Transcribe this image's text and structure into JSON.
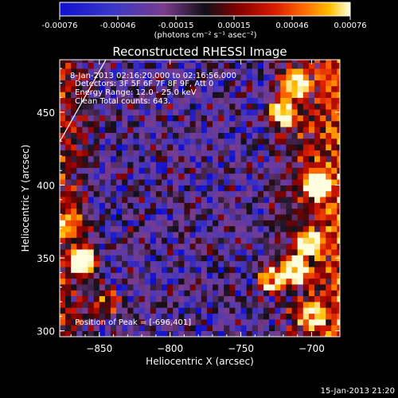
{
  "colorbar": {
    "ticks": [
      "-0.00076",
      "-0.00046",
      "-0.00015",
      "0.00015",
      "0.00046",
      "0.00076"
    ],
    "unit_label": "(photons cm⁻² s⁻¹ asec⁻²)",
    "colors": [
      "#1010d0",
      "#4a38b8",
      "#7a3c8c",
      "#101018",
      "#8a0000",
      "#d81c00",
      "#ff6a00",
      "#ffc000",
      "#ffffe0"
    ]
  },
  "chart_data": {
    "type": "heatmap",
    "title": "Reconstructed RHESSI Image",
    "xlabel": "Heliocentric X (arcsec)",
    "ylabel": "Heliocentric Y (arcsec)",
    "xlim": [
      -878,
      -680
    ],
    "ylim": [
      296,
      486
    ],
    "x_ticks": [
      {
        "value": -850,
        "label": "−850"
      },
      {
        "value": -800,
        "label": "−800"
      },
      {
        "value": -750,
        "label": "−750"
      },
      {
        "value": -700,
        "label": "−700"
      }
    ],
    "y_ticks": [
      {
        "value": 300,
        "label": "300"
      },
      {
        "value": 350,
        "label": "350"
      },
      {
        "value": 400,
        "label": "400"
      },
      {
        "value": 450,
        "label": "450"
      }
    ],
    "annotations": [
      "8-Jan-2013 02:16:20.000 to 02:16:56.000",
      "Detectors: 3F 5F 6F 7F 8F 9F, Att 0",
      "Energy Range: 12.0 - 25.0 keV",
      "Clean    Total counts: 643."
    ],
    "peak_label": "Position of Peak = [-696,401]",
    "bright_sources": [
      {
        "x": -696,
        "y": 401,
        "level": 1.0
      },
      {
        "x": -720,
        "y": 450,
        "level": 0.8
      },
      {
        "x": -712,
        "y": 470,
        "level": 0.7
      },
      {
        "x": -712,
        "y": 342,
        "level": 0.85
      },
      {
        "x": -728,
        "y": 335,
        "level": 0.75
      },
      {
        "x": -862,
        "y": 348,
        "level": 0.9
      },
      {
        "x": -702,
        "y": 360,
        "level": 0.65
      },
      {
        "x": -870,
        "y": 372,
        "level": 0.45
      },
      {
        "x": -845,
        "y": 320,
        "level": 0.4
      },
      {
        "x": -700,
        "y": 310,
        "level": 0.5
      }
    ]
  },
  "footer_timestamp": "15-Jan-2013 21:20"
}
